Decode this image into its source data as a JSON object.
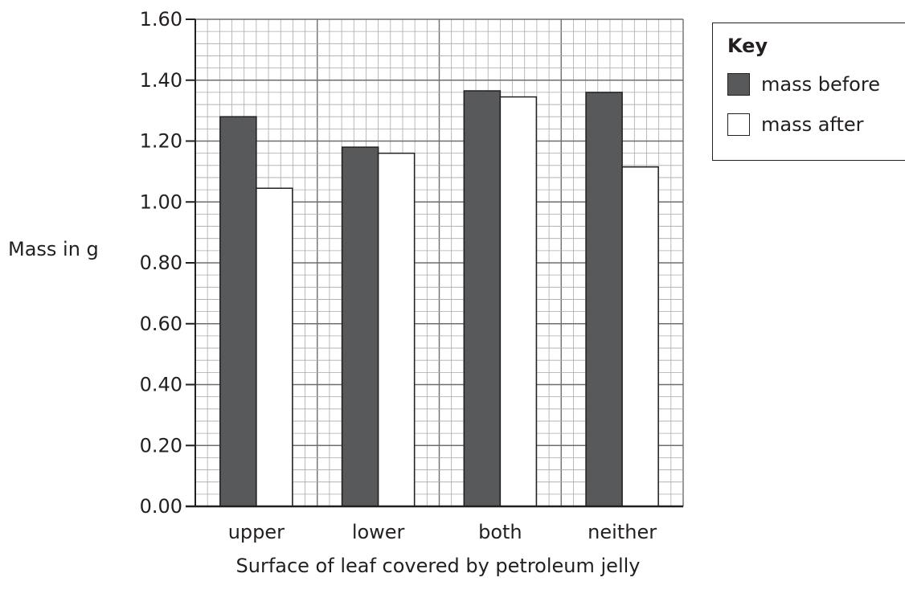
{
  "chart_data": {
    "type": "bar",
    "categories": [
      "upper",
      "lower",
      "both",
      "neither"
    ],
    "series": [
      {
        "name": "mass before",
        "values": [
          1.28,
          1.18,
          1.365,
          1.36
        ],
        "color": "#58595b"
      },
      {
        "name": "mass after",
        "values": [
          1.045,
          1.16,
          1.345,
          1.115
        ],
        "color": "#ffffff"
      }
    ],
    "xlabel": "Surface of leaf covered by petroleum jelly",
    "ylabel": "Mass in g",
    "ylim": [
      0,
      1.6
    ],
    "yticks": [
      "0.00",
      "0.20",
      "0.40",
      "0.60",
      "0.80",
      "1.00",
      "1.20",
      "1.40",
      "1.60"
    ],
    "grid": true,
    "legend": {
      "title": "Key",
      "position": "top-right"
    }
  }
}
